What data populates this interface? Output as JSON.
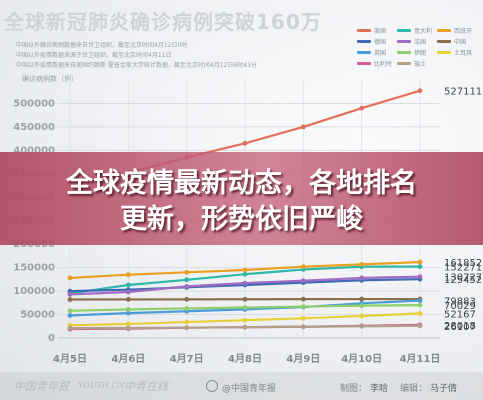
{
  "header": {
    "title": "全球新冠肺炎确诊病例突破160万",
    "notes": [
      "中国以外确诊病例数据来自世卫组织，截至北京时间4月12日0时",
      "中国以外疫情数据来源于世卫组织，截至北京时间4月11日",
      "中国以外疫情数据来自美国约翰斯·霍普金斯大学统计数据，截至北京时间4月12日6时43分"
    ]
  },
  "headline": {
    "line1": "全球疫情最新动态，各地排名",
    "line2": "更新，形势依旧严峻"
  },
  "footer": {
    "logos": [
      "中国青年报",
      "YOUTH.CN",
      "中青在线"
    ],
    "weibo": "@中国青年报",
    "credit_label": "制图：",
    "credit_name": "李晗",
    "editor_label": "编辑：",
    "editor_name": "马子倩"
  },
  "colors": {
    "overlay": "#b04a60",
    "headline_text": "#ffffff",
    "series": [
      "#e0705a",
      "#2eb8a8",
      "#e9a020",
      "#3f6bb4",
      "#a06bc4",
      "#8b6f4a",
      "#4a9bd6",
      "#8fcf6a",
      "#e8cf3a",
      "#d65a9a",
      "#b0a08a",
      "#555555"
    ]
  },
  "chart_data": {
    "type": "line",
    "title": "全球新冠肺炎确诊病例突破160万",
    "ylabel": "确诊病例数（例）",
    "xlabel": "",
    "x": [
      "4月5日",
      "4月6日",
      "4月7日",
      "4月8日",
      "4月9日",
      "4月10日",
      "4月11日"
    ],
    "ylim": [
      0,
      550000
    ],
    "yticks": [
      0,
      50000,
      100000,
      150000,
      200000,
      250000,
      300000,
      350000,
      400000,
      450000,
      500000
    ],
    "grid": true,
    "legend": "top-right",
    "series": [
      {
        "name": "美国",
        "values": [
          333000,
          352000,
          385000,
          415000,
          450000,
          490000,
          527111
        ]
      },
      {
        "name": "意大利",
        "values": [
          95000,
          113000,
          124000,
          136000,
          146000,
          152000,
          152271
        ]
      },
      {
        "name": "西班牙",
        "values": [
          128000,
          135000,
          140000,
          145000,
          152000,
          157000,
          161852
        ]
      },
      {
        "name": "德国",
        "values": [
          100000,
          103000,
          108000,
          113000,
          118000,
          123000,
          125452
        ]
      },
      {
        "name": "法国",
        "values": [
          93000,
          98000,
          110000,
          117000,
          122000,
          128000,
          130727
        ]
      },
      {
        "name": "中国",
        "values": [
          82000,
          82200,
          82400,
          82600,
          82800,
          83000,
          83014
        ]
      },
      {
        "name": "英国",
        "values": [
          48000,
          53000,
          57000,
          61000,
          66000,
          74000,
          79883
        ]
      },
      {
        "name": "伊朗",
        "values": [
          58000,
          61000,
          63000,
          65000,
          67000,
          69000,
          70029
        ]
      },
      {
        "name": "土耳其",
        "values": [
          27000,
          30000,
          34000,
          38000,
          42000,
          47000,
          52167
        ]
      },
      {
        "name": "比利时",
        "values": [
          19000,
          20000,
          22000,
          23000,
          24000,
          26000,
          28018
        ]
      },
      {
        "name": "瑞士",
        "values": [
          21000,
          21500,
          22000,
          23000,
          24000,
          25000,
          26107
        ]
      }
    ],
    "end_labels": [
      "527111",
      "161852",
      "152271",
      "130727",
      "125452",
      "79883",
      "70029",
      "52167",
      "28018",
      "26107"
    ]
  }
}
